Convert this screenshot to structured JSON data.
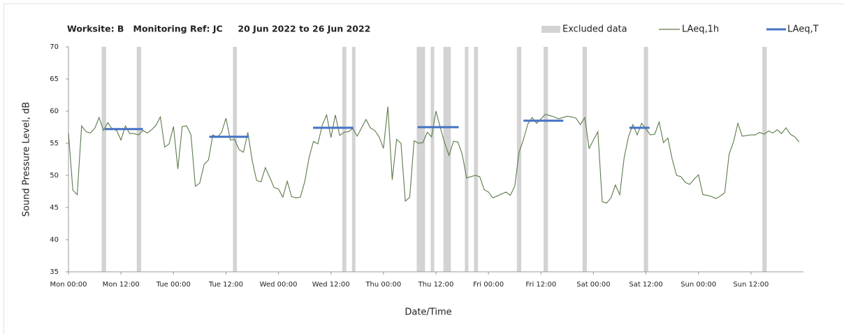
{
  "chart_data": {
    "type": "line",
    "title": "Worksite: B   Monitoring Ref: JC     20 Jun 2022 to 26 Jun 2022",
    "xlabel": "Date/Time",
    "ylabel": "Sound Pressure Level, dB",
    "xlim": [
      0,
      168
    ],
    "xticks": [
      {
        "value": 0,
        "label": "Mon 00:00"
      },
      {
        "value": 12,
        "label": "Mon 12:00"
      },
      {
        "value": 24,
        "label": "Tue 00:00"
      },
      {
        "value": 36,
        "label": "Tue 12:00"
      },
      {
        "value": 48,
        "label": "Wed 00:00"
      },
      {
        "value": 60,
        "label": "Wed 12:00"
      },
      {
        "value": 72,
        "label": "Thu 00:00"
      },
      {
        "value": 84,
        "label": "Thu 12:00"
      },
      {
        "value": 96,
        "label": "Fri 00:00"
      },
      {
        "value": 108,
        "label": "Fri 12:00"
      },
      {
        "value": 120,
        "label": "Sat 00:00"
      },
      {
        "value": 132,
        "label": "Sat 12:00"
      },
      {
        "value": 144,
        "label": "Sun 00:00"
      },
      {
        "value": 156,
        "label": "Sun 12:00"
      }
    ],
    "ylim": [
      35,
      70
    ],
    "yticks": [
      35,
      40,
      45,
      50,
      55,
      60,
      65,
      70
    ],
    "grid": false,
    "legend": "top-right",
    "excluded": {
      "name": "Excluded data",
      "color": "#d3d3d3",
      "ranges": [
        [
          7.6,
          8.6
        ],
        [
          15.6,
          16.6
        ],
        [
          37.6,
          38.5
        ],
        [
          62.6,
          63.5
        ],
        [
          64.8,
          65.6
        ],
        [
          79.6,
          81.5
        ],
        [
          82.8,
          83.6
        ],
        [
          85.7,
          87.4
        ],
        [
          90.6,
          91.4
        ],
        [
          92.7,
          93.6
        ],
        [
          102.5,
          103.5
        ],
        [
          108.6,
          109.6
        ],
        [
          117.5,
          118.5
        ],
        [
          131.5,
          132.5
        ],
        [
          158.6,
          159.6
        ]
      ]
    },
    "series": [
      {
        "name": "LAeq,1h",
        "color": "#5b7b4b",
        "x": [
          0,
          1,
          2,
          3,
          4,
          5,
          6,
          7,
          8,
          9,
          10,
          11,
          12,
          13,
          14,
          15,
          16,
          17,
          18,
          19,
          20,
          21,
          22,
          23,
          24,
          25,
          26,
          27,
          28,
          29,
          30,
          31,
          32,
          33,
          34,
          35,
          36,
          37,
          38,
          39,
          40,
          41,
          42,
          43,
          44,
          45,
          46,
          47,
          48,
          49,
          50,
          51,
          52,
          53,
          54,
          55,
          56,
          57,
          58,
          59,
          60,
          61,
          62,
          63,
          64,
          65,
          66,
          67,
          68,
          69,
          70,
          71,
          72,
          73,
          74,
          75,
          76,
          77,
          78,
          79,
          80,
          81,
          82,
          83,
          84,
          85,
          86,
          87,
          88,
          89,
          90,
          91,
          92,
          93,
          94,
          95,
          96,
          97,
          98,
          99,
          100,
          101,
          102,
          103,
          104,
          105,
          106,
          107,
          108,
          109,
          110,
          111,
          112,
          113,
          114,
          115,
          116,
          117,
          118,
          119,
          120,
          121,
          122,
          123,
          124,
          125,
          126,
          127,
          128,
          129,
          130,
          131,
          132,
          133,
          134,
          135,
          136,
          137,
          138,
          139,
          140,
          141,
          142,
          143,
          144,
          145,
          146,
          147,
          148,
          149,
          150,
          151,
          152,
          153,
          154,
          155,
          156,
          157,
          158,
          159,
          160,
          161,
          162,
          163,
          164,
          165,
          166,
          167
        ],
        "values": [
          56.6,
          47.7,
          47.0,
          57.7,
          56.8,
          56.6,
          57.3,
          59.0,
          57.0,
          58.2,
          57.2,
          57.0,
          55.5,
          57.7,
          56.5,
          56.5,
          56.3,
          57.0,
          56.6,
          57.1,
          57.8,
          59.1,
          54.4,
          54.9,
          57.6,
          51.0,
          57.6,
          57.7,
          56.3,
          48.3,
          48.8,
          51.7,
          52.4,
          56.3,
          55.9,
          56.7,
          58.9,
          55.5,
          55.6,
          54.0,
          53.6,
          56.7,
          52.3,
          49.2,
          49.0,
          51.2,
          49.7,
          48.1,
          47.9,
          46.6,
          49.1,
          46.7,
          46.5,
          46.6,
          49.0,
          52.8,
          55.3,
          54.9,
          57.8,
          59.4,
          55.9,
          59.4,
          56.2,
          56.7,
          56.8,
          57.3,
          56.1,
          57.4,
          58.7,
          57.4,
          57.0,
          56.0,
          54.2,
          60.7,
          49.3,
          55.6,
          55.0,
          46.0,
          46.6,
          55.4,
          55.0,
          55.1,
          56.7,
          56.0,
          60.0,
          57.4,
          55.0,
          53.1,
          55.3,
          55.2,
          53.3,
          49.6,
          49.8,
          50.0,
          49.8,
          47.8,
          47.4,
          46.5,
          46.8,
          47.1,
          47.4,
          46.9,
          48.3,
          53.6,
          55.6,
          58.0,
          59.0,
          58.1,
          58.8,
          59.5,
          59.3,
          59.1,
          58.8,
          59.0,
          59.2,
          59.1,
          58.9,
          57.9,
          59.0,
          54.2,
          55.5,
          56.8,
          45.9,
          45.7,
          46.5,
          48.5,
          47.0,
          52.7,
          56.0,
          57.9,
          56.3,
          58.1,
          57.2,
          56.3,
          56.4,
          58.3,
          55.1,
          55.8,
          52.5,
          50.0,
          49.8,
          48.9,
          48.6,
          49.4,
          50.1,
          47.0,
          46.9,
          46.7,
          46.4,
          46.8,
          47.3,
          53.3,
          55.2,
          58.1,
          56.1,
          56.2,
          56.3,
          56.3,
          56.7,
          56.4,
          56.9,
          56.6,
          57.1,
          56.5,
          57.4,
          56.4,
          56.0,
          55.2
        ]
      }
    ],
    "periods": {
      "name": "LAeq,T",
      "color": "#4472c4",
      "items": [
        {
          "start": 8.3,
          "end": 17.0,
          "value": 57.2
        },
        {
          "start": 32.2,
          "end": 41.2,
          "value": 56.0
        },
        {
          "start": 55.9,
          "end": 65.1,
          "value": 57.4
        },
        {
          "start": 79.8,
          "end": 89.2,
          "value": 57.5
        },
        {
          "start": 104.0,
          "end": 113.1,
          "value": 58.5
        },
        {
          "start": 128.2,
          "end": 132.8,
          "value": 57.4
        }
      ]
    }
  }
}
